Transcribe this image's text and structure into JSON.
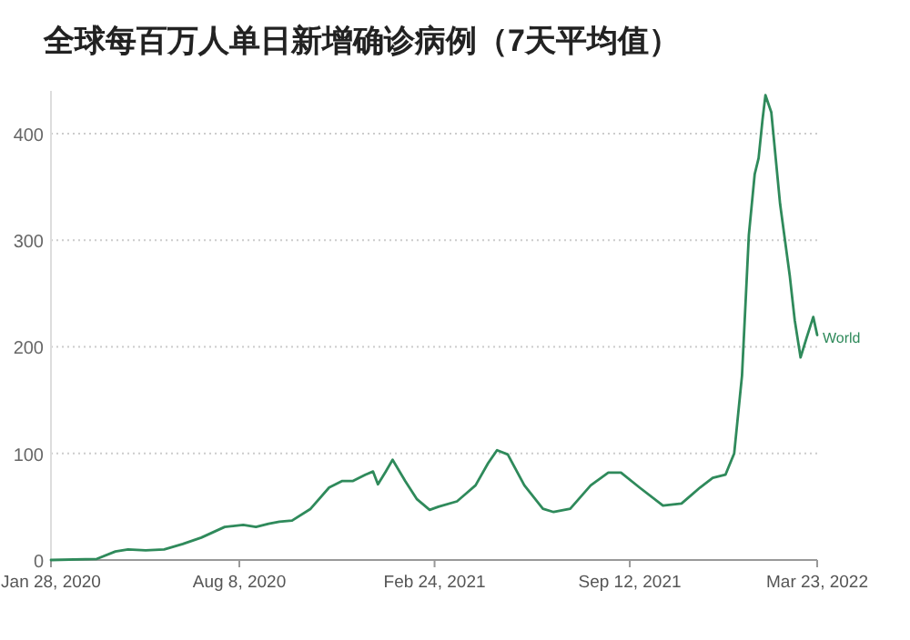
{
  "chart_data": {
    "type": "line",
    "title": "全球每百万人单日新增确诊病例（7天平均值）",
    "x": [
      "2020-01-28",
      "2020-03-15",
      "2020-04-03",
      "2020-04-16",
      "2020-05-04",
      "2020-05-23",
      "2020-06-11",
      "2020-06-30",
      "2020-07-24",
      "2020-08-12",
      "2020-08-25",
      "2020-09-07",
      "2020-09-18",
      "2020-10-01",
      "2020-10-20",
      "2020-11-08",
      "2020-11-21",
      "2020-12-02",
      "2020-12-15",
      "2020-12-23",
      "2020-12-28",
      "2021-01-05",
      "2021-01-12",
      "2021-01-25",
      "2021-02-06",
      "2021-02-19",
      "2021-02-28",
      "2021-03-19",
      "2021-04-07",
      "2021-04-20",
      "2021-04-29",
      "2021-05-10",
      "2021-05-27",
      "2021-06-15",
      "2021-06-26",
      "2021-07-13",
      "2021-08-03",
      "2021-08-21",
      "2021-09-03",
      "2021-09-22",
      "2021-10-16",
      "2021-11-04",
      "2021-11-23",
      "2021-12-06",
      "2021-12-19",
      "2021-12-28",
      "2022-01-05",
      "2022-01-12",
      "2022-01-18",
      "2022-01-22",
      "2022-01-26",
      "2022-01-29",
      "2022-02-04",
      "2022-02-13",
      "2022-02-23",
      "2022-02-28",
      "2022-03-06",
      "2022-03-12",
      "2022-03-19",
      "2022-03-23"
    ],
    "series": [
      {
        "name": "World",
        "color": "#2f8a5b",
        "values": [
          0,
          1,
          8,
          10,
          9,
          10,
          15,
          21,
          31,
          33,
          31,
          34,
          36,
          37,
          48,
          68,
          74,
          74,
          80,
          83,
          71,
          83,
          94,
          74,
          57,
          47,
          50,
          55,
          70,
          91,
          103,
          99,
          70,
          48,
          45,
          48,
          70,
          82,
          82,
          68,
          51,
          53,
          68,
          77,
          80,
          100,
          173,
          305,
          362,
          377,
          413,
          436,
          420,
          334,
          266,
          225,
          190,
          208,
          228,
          211
        ]
      }
    ],
    "xlim": [
      "2020-01-28",
      "2022-03-23"
    ],
    "xticks": [
      {
        "value": "2020-01-28",
        "label": "Jan 28, 2020"
      },
      {
        "value": "2020-08-08",
        "label": "Aug 8, 2020"
      },
      {
        "value": "2021-02-24",
        "label": "Feb 24, 2021"
      },
      {
        "value": "2021-09-12",
        "label": "Sep 12, 2021"
      },
      {
        "value": "2022-03-23",
        "label": "Mar 23, 2022"
      }
    ],
    "ylim": [
      0,
      440
    ],
    "yticks": [
      0,
      100,
      200,
      300,
      400
    ],
    "grid": "y"
  }
}
